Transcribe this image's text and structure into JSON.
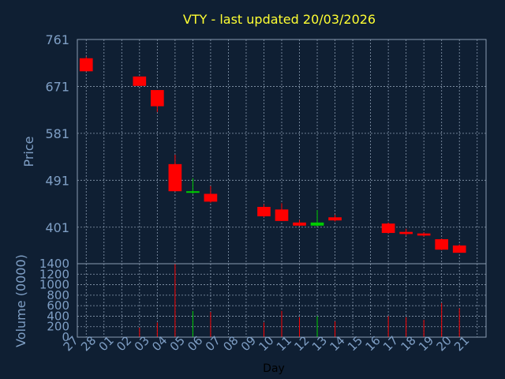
{
  "chart_data": {
    "type": "candlestick",
    "title": "VTY - last updated 20/03/2026",
    "xlabel": "Day",
    "price_panel": {
      "ylabel": "Price",
      "ylim": [
        331,
        761
      ],
      "yticks": [
        761,
        671,
        581,
        491,
        401
      ]
    },
    "volume_panel": {
      "ylabel": "Volume (0000)",
      "ylim": [
        0,
        1400
      ],
      "yticks": [
        1400,
        1200,
        1000,
        800,
        600,
        400,
        200,
        0
      ]
    },
    "days": [
      "27",
      "28",
      "01",
      "02",
      "03",
      "04",
      "05",
      "06",
      "07",
      "08",
      "09",
      "10",
      "11",
      "12",
      "13",
      "14",
      "15",
      "16",
      "17",
      "18",
      "19",
      "20",
      "21"
    ],
    "candles": [
      {
        "day": "27",
        "open": 725,
        "high": 728,
        "low": 700,
        "close": 700
      },
      {
        "day": "02",
        "open": 690,
        "high": 690,
        "low": 672,
        "close": 672
      },
      {
        "day": "03",
        "open": 664,
        "high": 664,
        "low": 622,
        "close": 633
      },
      {
        "day": "04",
        "open": 522,
        "high": 540,
        "low": 470,
        "close": 470
      },
      {
        "day": "05",
        "open": 468,
        "high": 495,
        "low": 465,
        "close": 470
      },
      {
        "day": "06",
        "open": 465,
        "high": 480,
        "low": 448,
        "close": 450
      },
      {
        "day": "09",
        "open": 440,
        "high": 445,
        "low": 420,
        "close": 422
      },
      {
        "day": "10",
        "open": 435,
        "high": 447,
        "low": 413,
        "close": 413
      },
      {
        "day": "11",
        "open": 410,
        "high": 415,
        "low": 403,
        "close": 404
      },
      {
        "day": "12",
        "open": 404,
        "high": 434,
        "low": 403,
        "close": 410
      },
      {
        "day": "13",
        "open": 420,
        "high": 425,
        "low": 412,
        "close": 414
      },
      {
        "day": "16",
        "open": 408,
        "high": 410,
        "low": 389,
        "close": 390
      },
      {
        "day": "17",
        "open": 392,
        "high": 398,
        "low": 385,
        "close": 388
      },
      {
        "day": "18",
        "open": 389,
        "high": 391,
        "low": 383,
        "close": 385
      },
      {
        "day": "19",
        "open": 378,
        "high": 379,
        "low": 357,
        "close": 358
      },
      {
        "day": "20",
        "open": 366,
        "high": 368,
        "low": 352,
        "close": 352
      }
    ],
    "volumes": [
      {
        "day": "02",
        "value": 180,
        "color": "#ff0000"
      },
      {
        "day": "03",
        "value": 280,
        "color": "#ff0000"
      },
      {
        "day": "04",
        "value": 1400,
        "color": "#ff0000"
      },
      {
        "day": "05",
        "value": 500,
        "color": "#00cc00"
      },
      {
        "day": "06",
        "value": 480,
        "color": "#ff0000"
      },
      {
        "day": "09",
        "value": 280,
        "color": "#ff0000"
      },
      {
        "day": "10",
        "value": 500,
        "color": "#ff0000"
      },
      {
        "day": "11",
        "value": 380,
        "color": "#ff0000"
      },
      {
        "day": "12",
        "value": 400,
        "color": "#00cc00"
      },
      {
        "day": "13",
        "value": 300,
        "color": "#ff0000"
      },
      {
        "day": "16",
        "value": 400,
        "color": "#ff0000"
      },
      {
        "day": "17",
        "value": 380,
        "color": "#ff0000"
      },
      {
        "day": "18",
        "value": 330,
        "color": "#ff0000"
      },
      {
        "day": "19",
        "value": 650,
        "color": "#ff0000"
      },
      {
        "day": "20",
        "value": 550,
        "color": "#ff0000"
      }
    ],
    "colors": {
      "down": "#ff0000",
      "up": "#00cc00",
      "background": "#0f1f33",
      "grid": "#8a9bb0"
    }
  }
}
